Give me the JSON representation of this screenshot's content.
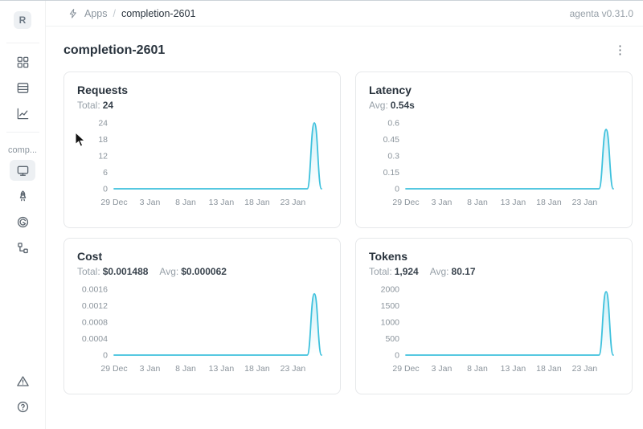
{
  "theme": {
    "line_color": "#3ec1dd",
    "selected_item_bg": "#edf0f3",
    "card_border": "#e6e8ea",
    "muted_text": "#8b959e"
  },
  "header": {
    "breadcrumb": {
      "icon": "bolt-icon",
      "section": "Apps",
      "separator": "/",
      "current": "completion-2601"
    },
    "version": "agenta v0.31.0"
  },
  "sidebar": {
    "avatar_initial": "R",
    "workspace_label": "comp...",
    "top_items": [
      {
        "icon": "grid-icon"
      },
      {
        "icon": "table-rows-icon"
      },
      {
        "icon": "line-chart-icon"
      }
    ],
    "app_items": [
      {
        "icon": "monitor-icon",
        "selected": true
      },
      {
        "icon": "rocket-icon",
        "selected": false
      },
      {
        "icon": "swirl-icon",
        "selected": false
      },
      {
        "icon": "tree-structure-icon",
        "selected": false
      }
    ],
    "bottom_items": [
      {
        "icon": "alert-triangle-icon"
      },
      {
        "icon": "help-circle-icon"
      }
    ]
  },
  "page": {
    "title": "completion-2601",
    "menu_glyph": "⋮"
  },
  "chart_data": [
    {
      "type": "line",
      "title": "Requests",
      "stats": [
        {
          "label": "Total:",
          "value": "24"
        }
      ],
      "xlabel": "",
      "ylabel": "",
      "x_tick_labels": [
        "29 Dec",
        "3 Jan",
        "8 Jan",
        "13 Jan",
        "18 Jan",
        "23 Jan"
      ],
      "x_tick_indices": [
        0,
        5,
        10,
        15,
        20,
        25
      ],
      "yticks": [
        0,
        6,
        12,
        18,
        24
      ],
      "ytick_labels": [
        "0",
        "6",
        "12",
        "18",
        "24"
      ],
      "ylim": [
        0,
        24
      ],
      "peak_value": 24,
      "values": [
        0,
        0,
        0,
        0,
        0,
        0,
        0,
        0,
        0,
        0,
        0,
        0,
        0,
        0,
        0,
        0,
        0,
        0,
        0,
        0,
        0,
        0,
        0,
        0,
        0,
        0,
        0,
        0,
        24,
        0
      ]
    },
    {
      "type": "line",
      "title": "Latency",
      "stats": [
        {
          "label": "Avg:",
          "value": "0.54s"
        }
      ],
      "xlabel": "",
      "ylabel": "",
      "x_tick_labels": [
        "29 Dec",
        "3 Jan",
        "8 Jan",
        "13 Jan",
        "18 Jan",
        "23 Jan"
      ],
      "x_tick_indices": [
        0,
        5,
        10,
        15,
        20,
        25
      ],
      "yticks": [
        0,
        0.15,
        0.3,
        0.45,
        0.6
      ],
      "ytick_labels": [
        "0",
        "0.15",
        "0.3",
        "0.45",
        "0.6"
      ],
      "ylim": [
        0,
        0.6
      ],
      "peak_value": 0.54,
      "values": [
        0,
        0,
        0,
        0,
        0,
        0,
        0,
        0,
        0,
        0,
        0,
        0,
        0,
        0,
        0,
        0,
        0,
        0,
        0,
        0,
        0,
        0,
        0,
        0,
        0,
        0,
        0,
        0,
        0.54,
        0
      ]
    },
    {
      "type": "line",
      "title": "Cost",
      "stats": [
        {
          "label": "Total:",
          "value": "$0.001488"
        },
        {
          "label": "Avg:",
          "value": "$0.000062"
        }
      ],
      "xlabel": "",
      "ylabel": "",
      "x_tick_labels": [
        "29 Dec",
        "3 Jan",
        "8 Jan",
        "13 Jan",
        "18 Jan",
        "23 Jan"
      ],
      "x_tick_indices": [
        0,
        5,
        10,
        15,
        20,
        25
      ],
      "yticks": [
        0,
        0.0004,
        0.0008,
        0.0012,
        0.0016
      ],
      "ytick_labels": [
        "0",
        "0.0004",
        "0.0008",
        "0.0012",
        "0.0016"
      ],
      "ylim": [
        0,
        0.0016
      ],
      "peak_value": 0.001488,
      "values": [
        0,
        0,
        0,
        0,
        0,
        0,
        0,
        0,
        0,
        0,
        0,
        0,
        0,
        0,
        0,
        0,
        0,
        0,
        0,
        0,
        0,
        0,
        0,
        0,
        0,
        0,
        0,
        0,
        0.001488,
        0
      ]
    },
    {
      "type": "line",
      "title": "Tokens",
      "stats": [
        {
          "label": "Total:",
          "value": "1,924"
        },
        {
          "label": "Avg:",
          "value": "80.17"
        }
      ],
      "xlabel": "",
      "ylabel": "",
      "x_tick_labels": [
        "29 Dec",
        "3 Jan",
        "8 Jan",
        "13 Jan",
        "18 Jan",
        "23 Jan"
      ],
      "x_tick_indices": [
        0,
        5,
        10,
        15,
        20,
        25
      ],
      "yticks": [
        0,
        500,
        1000,
        1500,
        2000
      ],
      "ytick_labels": [
        "0",
        "500",
        "1000",
        "1500",
        "2000"
      ],
      "ylim": [
        0,
        2000
      ],
      "peak_value": 1924,
      "values": [
        0,
        0,
        0,
        0,
        0,
        0,
        0,
        0,
        0,
        0,
        0,
        0,
        0,
        0,
        0,
        0,
        0,
        0,
        0,
        0,
        0,
        0,
        0,
        0,
        0,
        0,
        0,
        0,
        1924,
        0
      ]
    }
  ]
}
